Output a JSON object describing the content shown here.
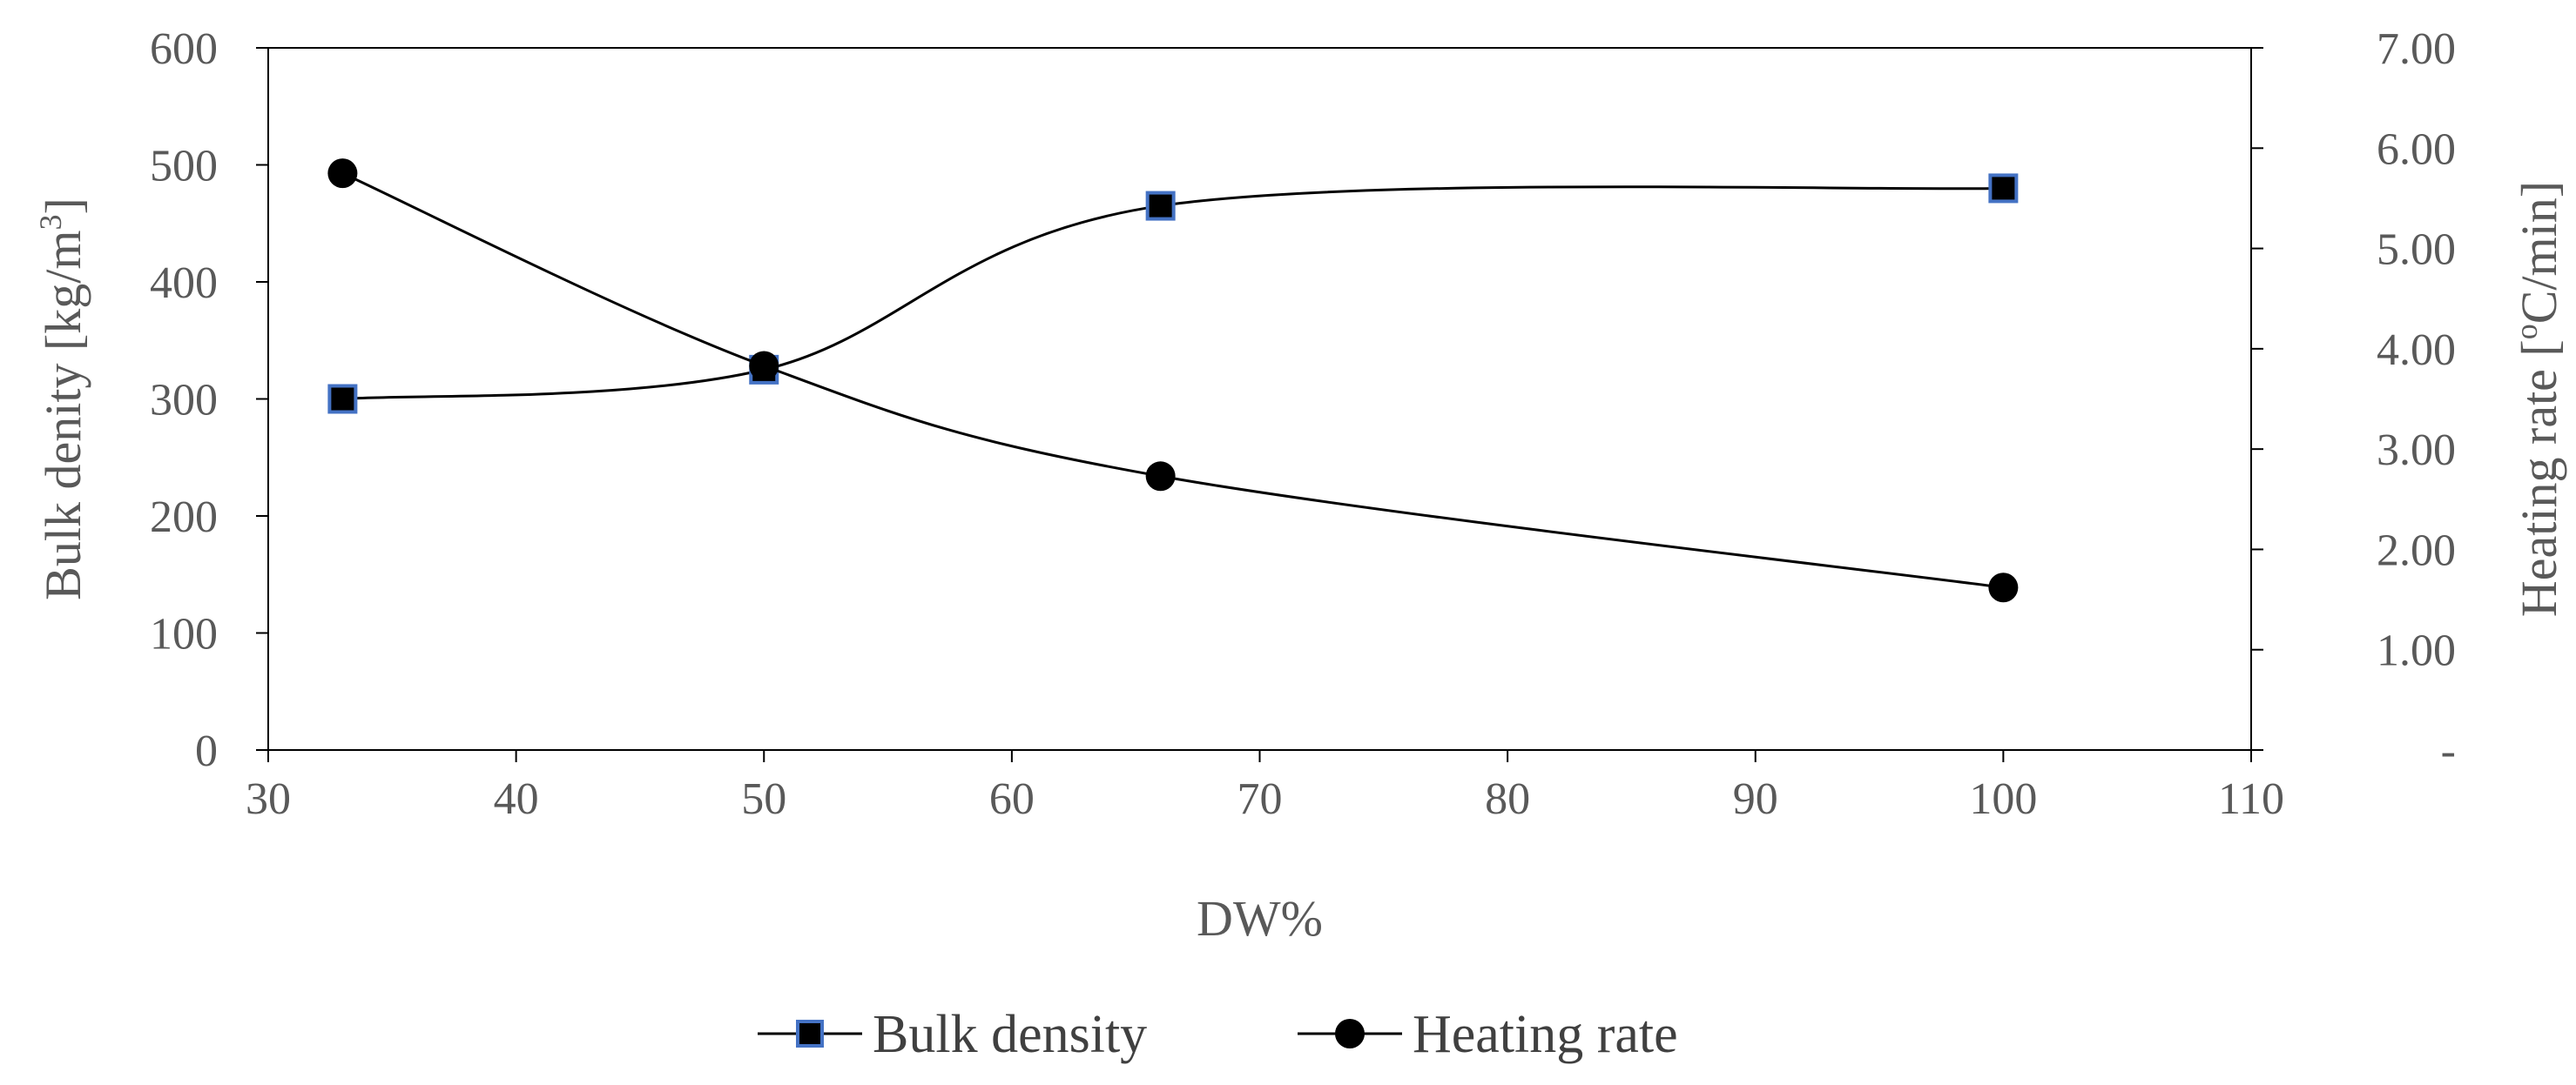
{
  "chart_data": {
    "type": "line",
    "title": "",
    "xlabel": "DW%",
    "ylabel": {
      "main": "Bulk denity [kg/m",
      "sup": "3",
      "end": "]"
    },
    "y2label": {
      "pre": "Heating rate [",
      "sup": "o",
      "end": "C/min]"
    },
    "xlim": [
      30,
      110
    ],
    "ylim": [
      0,
      600
    ],
    "y2lim": [
      0,
      7
    ],
    "x_ticks": [
      "30",
      "40",
      "50",
      "60",
      "70",
      "80",
      "90",
      "100",
      "110"
    ],
    "y_ticks": [
      "0",
      "100",
      "200",
      "300",
      "400",
      "500",
      "600"
    ],
    "y2_ticks": [
      "-",
      "1.00",
      "2.00",
      "3.00",
      "4.00",
      "5.00",
      "6.00",
      "7.00"
    ],
    "grid": false,
    "legend_position": "bottom",
    "series": [
      {
        "name": "Bulk density",
        "axis": "left",
        "marker": "square",
        "color": "#000000",
        "marker_edge": "#4472C4",
        "x": [
          33,
          50,
          66,
          100
        ],
        "y": [
          300,
          325,
          465,
          480
        ]
      },
      {
        "name": "Heating rate",
        "axis": "right",
        "marker": "circle",
        "color": "#000000",
        "x": [
          33,
          50,
          66,
          100
        ],
        "y": [
          5.75,
          3.83,
          2.73,
          1.62
        ]
      }
    ]
  }
}
